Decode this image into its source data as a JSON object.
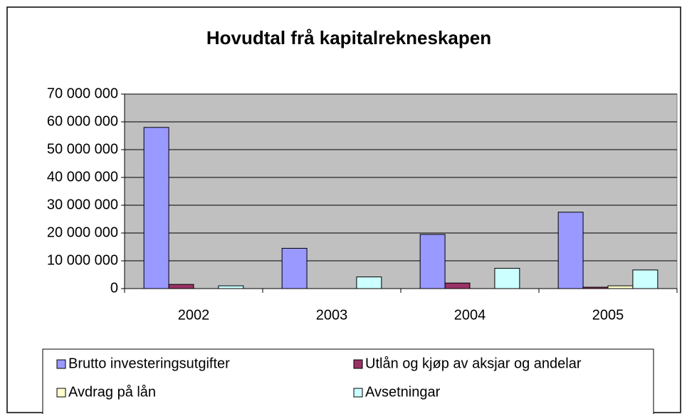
{
  "chart_data": {
    "type": "bar",
    "title": "Hovudtal frå kapitalrekneskapen",
    "categories": [
      "2002",
      "2003",
      "2004",
      "2005"
    ],
    "series": [
      {
        "name": "Brutto investeringsutgifter",
        "color": "#9999ff",
        "values": [
          58000000,
          14500000,
          19500000,
          27500000
        ]
      },
      {
        "name": "Utlån og kjøp av aksjar og andelar",
        "color": "#993366",
        "values": [
          1500000,
          0,
          2000000,
          500000
        ]
      },
      {
        "name": "Avdrag på lån",
        "color": "#ffffcc",
        "values": [
          0,
          0,
          0,
          1000000
        ]
      },
      {
        "name": "Avsetningar",
        "color": "#ccffff",
        "values": [
          1000000,
          4200000,
          7300000,
          6700000
        ]
      }
    ],
    "ylim": [
      0,
      70000000
    ],
    "yticks": [
      0,
      {
        "value": 10000000,
        "label": "10 000 000"
      },
      {
        "value": 20000000,
        "label": "20 000 000"
      },
      {
        "value": 30000000,
        "label": "30 000 000"
      },
      {
        "value": 40000000,
        "label": "40 000 000"
      },
      {
        "value": 50000000,
        "label": "50 000 000"
      },
      {
        "value": 60000000,
        "label": "60 000 000"
      },
      {
        "value": 70000000,
        "label": "70 000 000"
      }
    ],
    "grid": true,
    "legend": "bottom"
  }
}
